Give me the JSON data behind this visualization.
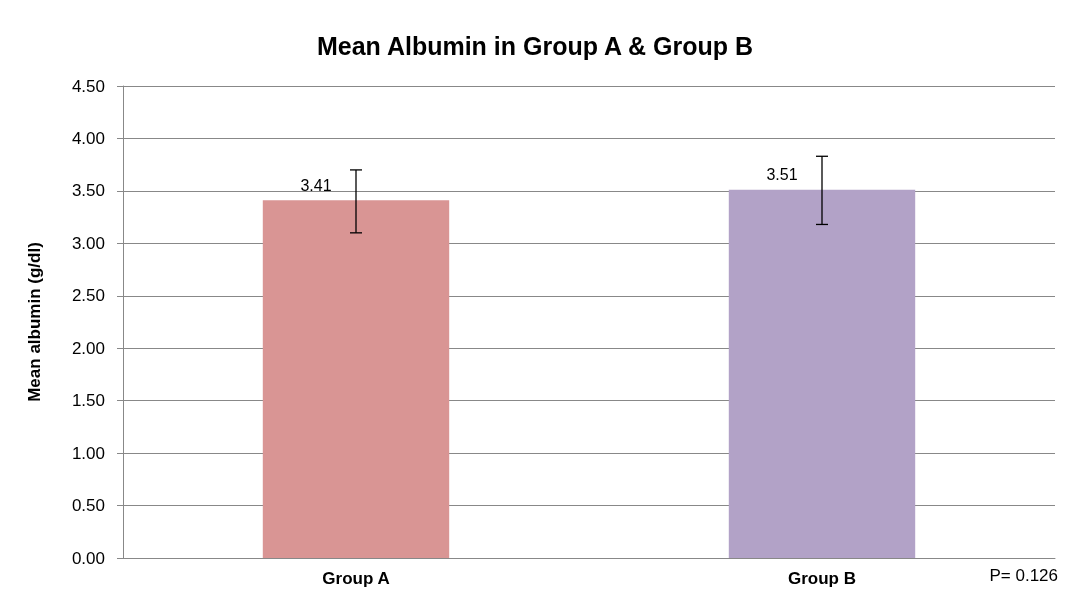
{
  "chart_data": {
    "type": "bar",
    "title": "Mean Albumin in Group A & Group B",
    "ylabel": "Mean albumin (g/dl)",
    "categories": [
      "Group A",
      "Group B"
    ],
    "values": [
      3.41,
      3.51
    ],
    "colors": [
      "#d99594",
      "#b2a2c7"
    ],
    "errors": [
      [
        3.1,
        3.7
      ],
      [
        3.18,
        3.83
      ]
    ],
    "data_labels": true,
    "ylim": [
      0,
      4.5
    ],
    "yticks": [
      {
        "value": 0,
        "label": "0.00"
      },
      {
        "value": 0.5,
        "label": "0.50"
      },
      {
        "value": 1,
        "label": "1.00"
      },
      {
        "value": 1.5,
        "label": "1.50"
      },
      {
        "value": 2,
        "label": "2.00"
      },
      {
        "value": 2.5,
        "label": "2.50"
      },
      {
        "value": 3,
        "label": "3.00"
      },
      {
        "value": 3.5,
        "label": "3.50"
      },
      {
        "value": 4,
        "label": "4.00"
      },
      {
        "value": 4.5,
        "label": "4.50"
      }
    ],
    "grid": true,
    "annotations": [
      "P= 0.126"
    ]
  }
}
